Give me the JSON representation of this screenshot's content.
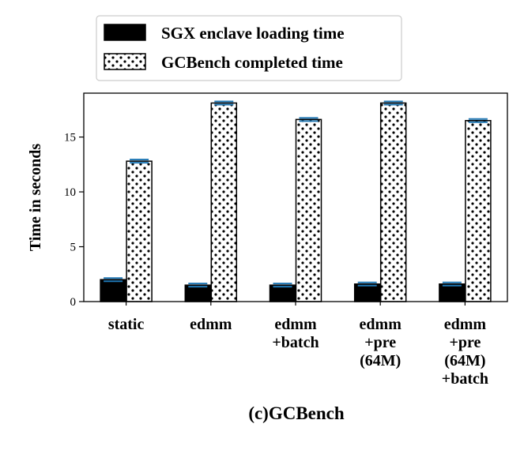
{
  "chart_data": {
    "type": "bar",
    "categories": [
      [
        "static"
      ],
      [
        "edmm"
      ],
      [
        "edmm",
        "+batch"
      ],
      [
        "edmm",
        "+pre",
        "(64M)"
      ],
      [
        "edmm",
        "+pre",
        "(64M)",
        "+batch"
      ]
    ],
    "series": [
      {
        "name": "SGX enclave loading time",
        "values": [
          2.0,
          1.5,
          1.5,
          1.6,
          1.6
        ],
        "color": "#000000",
        "pattern": "solid"
      },
      {
        "name": "GCBench completed time",
        "values": [
          12.8,
          18.1,
          16.6,
          18.1,
          16.5
        ],
        "color": "#ffffff",
        "pattern": "dots"
      }
    ],
    "error_bar_color": "#1f77b4",
    "ylabel": "Time in seconds",
    "ylim": [
      0,
      19
    ],
    "yticks": [
      0,
      5,
      10,
      15
    ],
    "legend_position": "top-center",
    "caption": "(c)GCBench"
  }
}
